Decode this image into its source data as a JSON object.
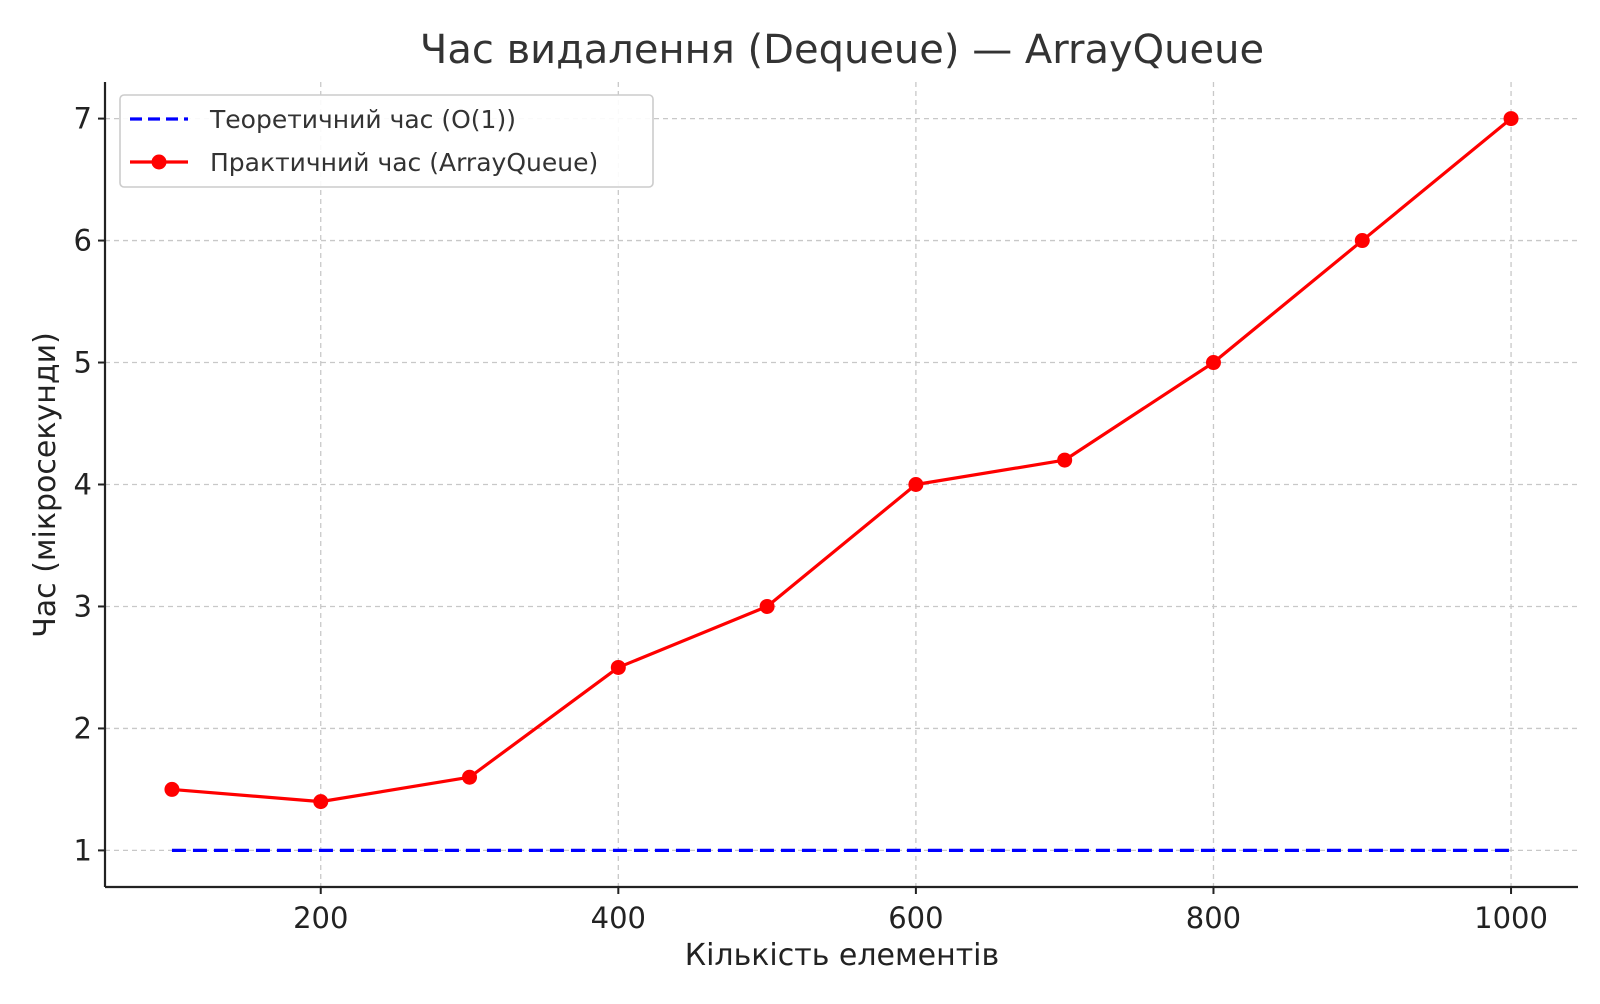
{
  "chart_data": {
    "type": "line",
    "title": "Час видалення (Dequeue) — ArrayQueue",
    "xlabel": "Кількість елементів",
    "ylabel": "Час (мікросекунди)",
    "xlim": [
      55,
      1045
    ],
    "ylim": [
      0.7,
      7.3
    ],
    "xticks": [
      200,
      400,
      600,
      800,
      1000
    ],
    "yticks": [
      1,
      2,
      3,
      4,
      5,
      6,
      7
    ],
    "grid": true,
    "legend": "top-left",
    "x": [
      100,
      200,
      300,
      400,
      500,
      600,
      700,
      800,
      900,
      1000
    ],
    "series": [
      {
        "name": "Теоретичний час (O(1))",
        "values": [
          1,
          1,
          1,
          1,
          1,
          1,
          1,
          1,
          1,
          1
        ],
        "color": "#0000ff",
        "style": "dashed",
        "markers": false
      },
      {
        "name": "Практичний час (ArrayQueue)",
        "values": [
          1.5,
          1.4,
          1.6,
          2.5,
          3.0,
          4.0,
          4.2,
          5.0,
          6.0,
          7.0
        ],
        "color": "#ff0000",
        "style": "solid",
        "markers": true
      }
    ]
  }
}
